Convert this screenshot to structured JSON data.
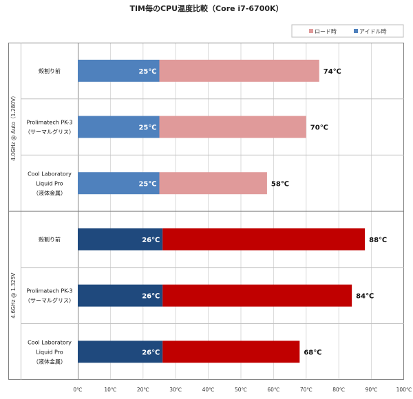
{
  "chart_data": {
    "type": "bar",
    "orientation": "horizontal",
    "stacked": true,
    "title": "TIM毎のCPU温度比較（Core i7-6700K）",
    "legend": {
      "position": "top-right",
      "entries": [
        {
          "name": "ロード時",
          "color": "#e09a9a"
        },
        {
          "name": "アイドル時",
          "color": "#4f81bd"
        }
      ]
    },
    "xlim": [
      0,
      100
    ],
    "xticks": [
      0,
      10,
      20,
      30,
      40,
      50,
      60,
      70,
      80,
      90,
      100
    ],
    "unit": "℃",
    "grid": true,
    "groups": [
      {
        "label": "4.0GHz @ Auto（1.280V）",
        "idle_color": "#4f81bd",
        "load_color": "#e09a9a",
        "rows": [
          {
            "label": [
              "殻割り前"
            ],
            "idle": 25,
            "load": 74
          },
          {
            "label": [
              "Prolimatech PK-3",
              "（サーマルグリス）"
            ],
            "idle": 25,
            "load": 70
          },
          {
            "label": [
              "Cool Laboratory",
              "Liquid Pro",
              "（液体金属）"
            ],
            "idle": 25,
            "load": 58
          }
        ]
      },
      {
        "label": "4.6GHz @ 1.325V",
        "idle_color": "#1f497d",
        "load_color": "#c00000",
        "rows": [
          {
            "label": [
              "殻割り前"
            ],
            "idle": 26,
            "load": 88
          },
          {
            "label": [
              "Prolimatech PK-3",
              "（サーマルグリス）"
            ],
            "idle": 26,
            "load": 84
          },
          {
            "label": [
              "Cool Laboratory",
              "Liquid Pro",
              "（液体金属）"
            ],
            "idle": 26,
            "load": 68
          }
        ]
      }
    ]
  }
}
